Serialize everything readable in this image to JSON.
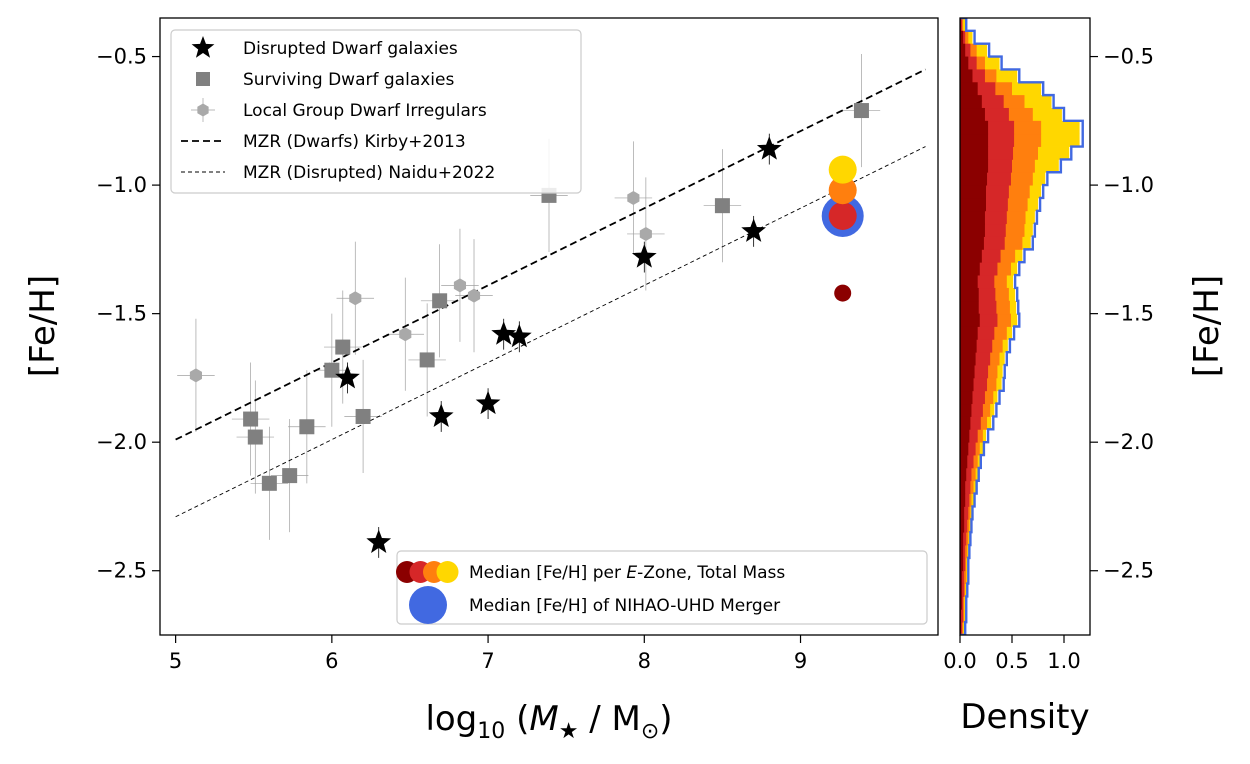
{
  "chart_data": [
    {
      "type": "scatter",
      "xlabel_main": "log",
      "xlabel_sub": "10",
      "xlabel_rest_open": " (",
      "xlabel_m": "M",
      "xlabel_star": "★",
      "xlabel_slash": " / M",
      "xlabel_odot": "⊙",
      "xlabel_close": ")",
      "ylabel": "[Fe/H]",
      "xlim": [
        4.9,
        9.88
      ],
      "ylim": [
        -2.75,
        -0.35
      ],
      "xticks": [
        "5",
        "6",
        "7",
        "8",
        "9"
      ],
      "yticks": [
        "−0.5",
        "−1.0",
        "−1.5",
        "−2.0",
        "−2.5"
      ],
      "legend_top": [
        {
          "label": "Disrupted Dwarf galaxies",
          "marker": "star"
        },
        {
          "label": "Surviving Dwarf galaxies",
          "marker": "square"
        },
        {
          "label": "Local Group Dwarf Irregulars",
          "marker": "hexagon"
        },
        {
          "label": "MZR (Dwarfs) Kirby+2013",
          "marker": "dashed"
        },
        {
          "label": "MZR (Disrupted) Naidu+2022",
          "marker": "thin-dashed"
        }
      ],
      "legend_bottom": [
        {
          "label_pre": "Median [Fe/H] per ",
          "label_italic": "E",
          "label_post": "-Zone, Total Mass"
        },
        {
          "label_pre": "Median [Fe/H] of NIHAO-UHD Merger",
          "label_italic": "",
          "label_post": ""
        }
      ],
      "mzr_dwarfs": {
        "x": [
          5.0,
          9.8
        ],
        "y": [
          -1.99,
          -0.55
        ]
      },
      "mzr_disrupted": {
        "x": [
          5.0,
          9.8
        ],
        "y": [
          -2.29,
          -0.85
        ]
      },
      "disrupted": [
        {
          "x": 6.1,
          "y": -1.75
        },
        {
          "x": 6.3,
          "y": -2.39
        },
        {
          "x": 6.7,
          "y": -1.9
        },
        {
          "x": 7.0,
          "y": -1.85
        },
        {
          "x": 7.1,
          "y": -1.58
        },
        {
          "x": 7.2,
          "y": -1.59
        },
        {
          "x": 8.0,
          "y": -1.28
        },
        {
          "x": 8.7,
          "y": -1.18
        },
        {
          "x": 8.8,
          "y": -0.86
        }
      ],
      "surviving": [
        {
          "x": 5.48,
          "y": -1.91
        },
        {
          "x": 5.51,
          "y": -1.98
        },
        {
          "x": 5.6,
          "y": -2.16
        },
        {
          "x": 5.73,
          "y": -2.13
        },
        {
          "x": 5.84,
          "y": -1.94
        },
        {
          "x": 6.0,
          "y": -1.72
        },
        {
          "x": 6.07,
          "y": -1.63
        },
        {
          "x": 6.2,
          "y": -1.9
        },
        {
          "x": 6.61,
          "y": -1.68
        },
        {
          "x": 6.69,
          "y": -1.45
        },
        {
          "x": 7.39,
          "y": -1.04
        },
        {
          "x": 8.5,
          "y": -1.08
        },
        {
          "x": 9.39,
          "y": -0.71
        }
      ],
      "local_group": [
        {
          "x": 5.13,
          "y": -1.74
        },
        {
          "x": 6.15,
          "y": -1.44
        },
        {
          "x": 6.47,
          "y": -1.58
        },
        {
          "x": 6.82,
          "y": -1.39
        },
        {
          "x": 6.91,
          "y": -1.43
        },
        {
          "x": 7.93,
          "y": -1.05
        },
        {
          "x": 8.01,
          "y": -1.19
        }
      ],
      "ezone_medians": [
        {
          "x": 9.27,
          "y": -1.42,
          "color": "#8b0000"
        },
        {
          "x": 9.27,
          "y": -1.12,
          "color": "#d62728"
        },
        {
          "x": 9.27,
          "y": -1.02,
          "color": "#ff7f0e"
        },
        {
          "x": 9.27,
          "y": -0.94,
          "color": "#ffd700"
        }
      ],
      "merger_median": {
        "x": 9.27,
        "y": -1.12,
        "color": "#4169e1"
      }
    },
    {
      "type": "histogram",
      "orientation": "horizontal",
      "xlabel": "Density",
      "ylabel": "[Fe/H]",
      "xlim": [
        0,
        1.25
      ],
      "ylim": [
        -2.75,
        -0.35
      ],
      "xticks": [
        "0.0",
        "0.5",
        "1.0"
      ],
      "yticks": [
        "−0.5",
        "−1.0",
        "−1.5",
        "−2.0",
        "−2.5"
      ],
      "bin_edges": [
        -2.75,
        -2.7,
        -2.65,
        -2.6,
        -2.55,
        -2.5,
        -2.45,
        -2.4,
        -2.35,
        -2.3,
        -2.25,
        -2.2,
        -2.15,
        -2.1,
        -2.05,
        -2.0,
        -1.95,
        -1.9,
        -1.85,
        -1.8,
        -1.75,
        -1.7,
        -1.65,
        -1.6,
        -1.55,
        -1.5,
        -1.45,
        -1.4,
        -1.35,
        -1.3,
        -1.25,
        -1.2,
        -1.15,
        -1.1,
        -1.05,
        -1.0,
        -0.95,
        -0.9,
        -0.85,
        -0.8,
        -0.75,
        -0.7,
        -0.65,
        -0.6,
        -0.55,
        -0.5,
        -0.45,
        -0.4,
        -0.35
      ],
      "series": [
        {
          "color": "#ffd700",
          "values": [
            0.04,
            0.05,
            0.05,
            0.06,
            0.07,
            0.07,
            0.08,
            0.09,
            0.1,
            0.11,
            0.13,
            0.15,
            0.17,
            0.19,
            0.22,
            0.25,
            0.3,
            0.33,
            0.36,
            0.4,
            0.41,
            0.43,
            0.46,
            0.5,
            0.55,
            0.54,
            0.53,
            0.51,
            0.55,
            0.6,
            0.68,
            0.7,
            0.72,
            0.75,
            0.78,
            0.82,
            0.95,
            1.05,
            1.15,
            1.15,
            0.98,
            0.88,
            0.78,
            0.55,
            0.38,
            0.26,
            0.12,
            0.05
          ]
        },
        {
          "color": "#ff7f0e",
          "values": [
            0.03,
            0.04,
            0.04,
            0.05,
            0.06,
            0.06,
            0.07,
            0.08,
            0.09,
            0.1,
            0.11,
            0.13,
            0.15,
            0.17,
            0.19,
            0.22,
            0.26,
            0.29,
            0.32,
            0.35,
            0.36,
            0.38,
            0.41,
            0.45,
            0.49,
            0.48,
            0.47,
            0.45,
            0.49,
            0.53,
            0.6,
            0.62,
            0.63,
            0.65,
            0.67,
            0.7,
            0.72,
            0.75,
            0.78,
            0.78,
            0.7,
            0.62,
            0.5,
            0.35,
            0.24,
            0.16,
            0.08,
            0.03
          ]
        },
        {
          "color": "#d62728",
          "values": [
            0.02,
            0.03,
            0.03,
            0.04,
            0.04,
            0.05,
            0.05,
            0.06,
            0.07,
            0.08,
            0.09,
            0.1,
            0.11,
            0.13,
            0.15,
            0.17,
            0.2,
            0.22,
            0.24,
            0.26,
            0.27,
            0.29,
            0.31,
            0.33,
            0.36,
            0.35,
            0.34,
            0.33,
            0.36,
            0.39,
            0.43,
            0.44,
            0.45,
            0.46,
            0.47,
            0.49,
            0.5,
            0.51,
            0.52,
            0.52,
            0.47,
            0.42,
            0.34,
            0.24,
            0.16,
            0.1,
            0.05,
            0.02
          ]
        },
        {
          "color": "#8b0000",
          "values": [
            0.01,
            0.01,
            0.02,
            0.02,
            0.02,
            0.03,
            0.03,
            0.03,
            0.04,
            0.04,
            0.05,
            0.05,
            0.06,
            0.07,
            0.08,
            0.09,
            0.1,
            0.11,
            0.12,
            0.13,
            0.14,
            0.15,
            0.16,
            0.17,
            0.19,
            0.18,
            0.18,
            0.17,
            0.19,
            0.21,
            0.23,
            0.24,
            0.24,
            0.25,
            0.25,
            0.26,
            0.27,
            0.27,
            0.27,
            0.27,
            0.24,
            0.21,
            0.17,
            0.12,
            0.08,
            0.05,
            0.03,
            0.01
          ]
        }
      ],
      "outline": {
        "color": "#4169e1",
        "values": [
          0.05,
          0.06,
          0.06,
          0.07,
          0.08,
          0.08,
          0.09,
          0.1,
          0.11,
          0.12,
          0.14,
          0.16,
          0.18,
          0.2,
          0.23,
          0.27,
          0.32,
          0.35,
          0.38,
          0.42,
          0.43,
          0.45,
          0.48,
          0.52,
          0.57,
          0.56,
          0.55,
          0.53,
          0.57,
          0.62,
          0.7,
          0.72,
          0.74,
          0.77,
          0.8,
          0.84,
          0.97,
          1.07,
          1.18,
          1.18,
          1.0,
          0.9,
          0.8,
          0.57,
          0.4,
          0.28,
          0.14,
          0.06
        ]
      }
    }
  ]
}
